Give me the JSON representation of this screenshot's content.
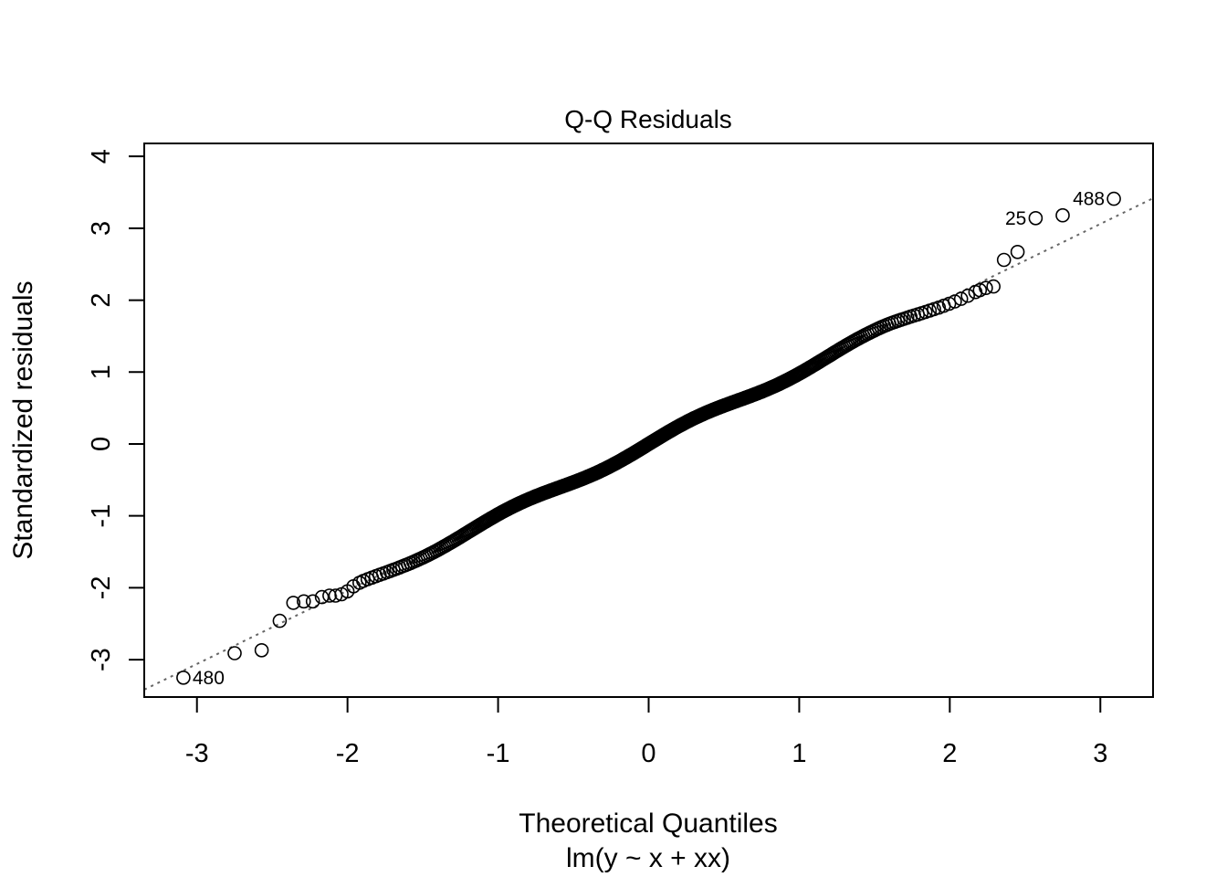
{
  "chart_data": {
    "type": "scatter",
    "title": "Q-Q Residuals",
    "xlabel": "Theoretical Quantiles",
    "subtitle": "lm(y ~ x + xx)",
    "ylabel": "Standardized residuals",
    "xlim": [
      -3.35,
      3.35
    ],
    "ylim": [
      -3.52,
      4.18
    ],
    "xticks": [
      -3,
      -2,
      -1,
      0,
      1,
      2,
      3
    ],
    "xtick_labels": [
      "-3",
      "-2",
      "-1",
      "0",
      "1",
      "2",
      "3"
    ],
    "yticks": [
      -3,
      -2,
      -1,
      0,
      1,
      2,
      3,
      4
    ],
    "ytick_labels": [
      "-3",
      "-2",
      "-1",
      "0",
      "1",
      "2",
      "3",
      "4"
    ],
    "grid": false,
    "n_points": 500,
    "reference_line": {
      "style": "dotted",
      "color": "#666666",
      "intercept": 0.0,
      "slope": 1.02
    },
    "tail_points": {
      "x": [
        -3.09,
        -2.75,
        -2.57,
        -2.45,
        -2.36,
        -2.29,
        -2.23,
        -2.17,
        -2.12,
        -2.08,
        -2.04,
        -2.0,
        -1.96,
        -1.92,
        2.2,
        2.24,
        2.29,
        2.36,
        2.45,
        2.57,
        2.75,
        3.09
      ],
      "y": [
        -3.25,
        -2.91,
        -2.87,
        -2.46,
        -2.21,
        -2.19,
        -2.19,
        -2.13,
        -2.11,
        -2.11,
        -2.09,
        -2.05,
        -1.98,
        -1.93,
        2.14,
        2.17,
        2.19,
        2.56,
        2.67,
        3.14,
        3.18,
        3.41
      ]
    },
    "labeled_points": [
      {
        "label": "480",
        "x": -3.09,
        "y": -3.25,
        "side": "right"
      },
      {
        "label": "25",
        "x": 2.57,
        "y": 3.14,
        "side": "left"
      },
      {
        "label": "488",
        "x": 3.09,
        "y": 3.41,
        "side": "left"
      }
    ],
    "marker": {
      "shape": "open-circle",
      "color": "#000000"
    }
  }
}
